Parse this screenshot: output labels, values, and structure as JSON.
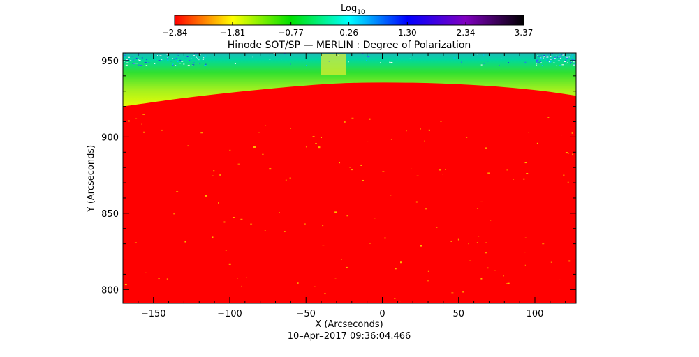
{
  "chart_data": {
    "type": "heatmap",
    "title": "Hinode SOT/SP — MERLIN : Degree of Polarization",
    "xlabel": "X (Arcseconds)",
    "ylabel": "Y (Arcseconds)",
    "xlim": [
      -170,
      127
    ],
    "ylim": [
      791,
      955
    ],
    "x_ticks": [
      -150,
      -100,
      -50,
      0,
      50,
      100
    ],
    "x_tick_labels": [
      "−150",
      "−100",
      "−50",
      "0",
      "50",
      "100"
    ],
    "y_ticks": [
      800,
      850,
      900,
      950
    ],
    "y_tick_labels": [
      "800",
      "850",
      "900",
      "950"
    ],
    "timestamp": "10–Apr–2017 09:36:04.466",
    "colorbar": {
      "title": "Log",
      "title_subscript": "10",
      "min": -2.84,
      "max": 3.37,
      "tick_values": [
        -2.84,
        -1.81,
        -0.77,
        0.26,
        1.3,
        2.34,
        3.37
      ],
      "tick_labels": [
        "−2.84",
        "−1.81",
        "−0.77",
        "0.26",
        "1.30",
        "2.34",
        "3.37"
      ],
      "colormap_stops": [
        "#ff0000",
        "#ffff00",
        "#00e000",
        "#00ffff",
        "#0000ff",
        "#8000c0",
        "#000000"
      ]
    },
    "limb_edge_y": [
      [
        -170,
        920
      ],
      [
        -120,
        927
      ],
      [
        -50,
        934
      ],
      [
        -10,
        936
      ],
      [
        50,
        935
      ],
      [
        100,
        931
      ],
      [
        127,
        927
      ]
    ],
    "disk_value": -2.84,
    "off_limb_value_range": [
      -2.0,
      0.5
    ],
    "grid": false
  }
}
